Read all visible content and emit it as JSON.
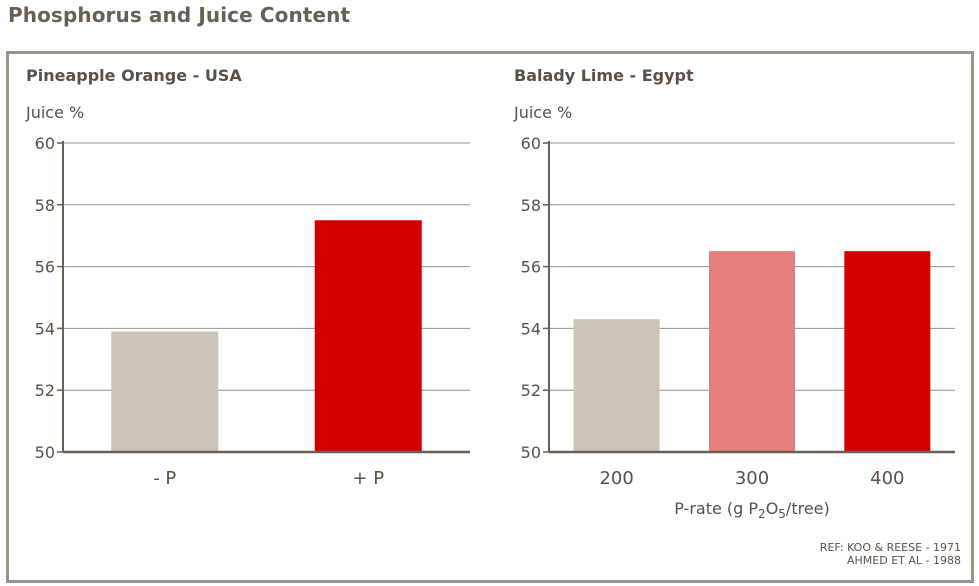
{
  "page": {
    "title": "Phosphorus and Juice Content"
  },
  "chart_data": [
    {
      "type": "bar",
      "title": "Pineapple Orange - USA",
      "ylabel": "Juice %",
      "xlabel": "",
      "ylim": [
        50,
        60
      ],
      "yticks": [
        "50",
        "52",
        "54",
        "56",
        "58",
        "60"
      ],
      "grid": true,
      "categories": [
        "- P",
        "+ P"
      ],
      "values": [
        53.9,
        57.5
      ],
      "colors": [
        "#cdc4b8",
        "#d40000"
      ]
    },
    {
      "type": "bar",
      "title": "Balady Lime - Egypt",
      "ylabel": "Juice %",
      "xlabel_parts": [
        "P-rate (g P",
        "2",
        "O",
        "5",
        "/tree)"
      ],
      "ylim": [
        50,
        60
      ],
      "yticks": [
        "50",
        "52",
        "54",
        "56",
        "58",
        "60"
      ],
      "grid": true,
      "categories": [
        "200",
        "300",
        "400"
      ],
      "values": [
        54.3,
        56.5,
        56.5
      ],
      "colors": [
        "#cdc4b8",
        "#e67e7e",
        "#d40000"
      ]
    }
  ],
  "reference": {
    "line1": "REF: KOO & REESE - 1971",
    "line2": "AHMED ET AL  - 1988"
  }
}
